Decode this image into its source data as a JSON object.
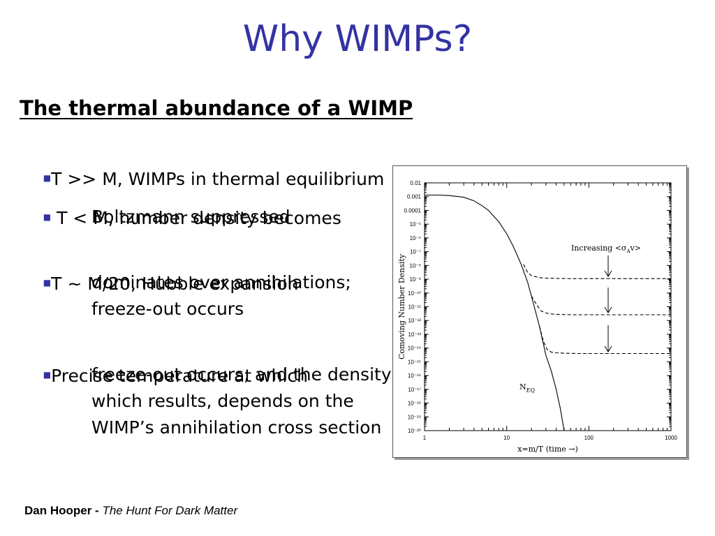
{
  "slide": {
    "title": "Why WIMPs?",
    "subtitle": "The thermal abundance of a WIMP",
    "bullets": [
      {
        "lines": [
          "T >> M, WIMPs in thermal equilibrium"
        ]
      },
      {
        "lines": [
          " T < M, number density becomes",
          "Boltzmann suppressed"
        ]
      },
      {
        "lines": [
          "T ~ M/20, Hubble expansion",
          "dominates over annihilations;",
          "freeze-out occurs"
        ]
      },
      {
        "lines": [
          "Precise temperature at which",
          "freeze-out occurs, and the density",
          "which results, depends on the",
          "WIMP’s annihilation cross section"
        ]
      }
    ]
  },
  "footer": {
    "author": "Dan Hooper - ",
    "talk": "The Hunt For Dark Matter"
  },
  "colors": {
    "title": "#3333a3",
    "bullet": "#3333a3"
  },
  "chart_data": {
    "type": "line",
    "xlabel": "x=m/T (time →)",
    "ylabel": "Comoving Number Density",
    "xscale": "log",
    "yscale": "log",
    "xlim": [
      1,
      1000
    ],
    "ylim": [
      1e-20,
      0.01
    ],
    "x_ticks": [
      "1",
      "10",
      "100",
      "1000"
    ],
    "y_ticks": [
      "0.01",
      "0.001",
      "0.0001",
      "10⁻⁵",
      "10⁻⁶",
      "10⁻⁷",
      "10⁻⁸",
      "10⁻⁹",
      "10⁻¹⁰",
      "10⁻¹¹",
      "10⁻¹²",
      "10⁻¹³",
      "10⁻¹⁴",
      "10⁻¹⁵",
      "10⁻¹⁶",
      "10⁻¹⁷",
      "10⁻¹⁸",
      "10⁻¹⁹",
      "10⁻²⁰"
    ],
    "annotations": {
      "increasing_prefix": "Increasing <σ",
      "increasing_sub": "A",
      "increasing_suffix": "v>",
      "neq_main": "N",
      "neq_sub": "EQ"
    },
    "series": [
      {
        "name": "N_EQ",
        "style": "solid",
        "x": [
          1,
          1.5,
          2,
          3,
          4,
          5,
          6,
          8,
          10,
          12,
          15,
          18,
          20,
          25,
          30,
          35,
          40,
          45,
          50
        ],
        "y": [
          0.0013,
          0.0013,
          0.0012,
          0.0009,
          0.0005,
          0.00022,
          0.0001,
          1.5e-05,
          2e-06,
          2.5e-07,
          1.2e-08,
          6e-10,
          6e-11,
          4e-13,
          3e-15,
          2e-16,
          1e-17,
          4e-19,
          1e-20
        ]
      },
      {
        "style": "dashed",
        "x": [
          16,
          18,
          20,
          25,
          30,
          40,
          50,
          70,
          100,
          200,
          500,
          1000
        ],
        "y": [
          1.2e-08,
          3e-09,
          1.8e-09,
          1.3e-09,
          1.2e-09,
          1.15e-09,
          1.12e-09,
          1.1e-09,
          1.1e-09,
          1.1e-09,
          1.1e-09,
          1.1e-09
        ]
      },
      {
        "style": "dashed",
        "x": [
          20,
          23,
          26,
          30,
          35,
          40,
          50,
          70,
          100,
          200,
          500,
          1000
        ],
        "y": [
          6e-11,
          1.5e-11,
          5e-12,
          3.5e-12,
          3e-12,
          2.8e-12,
          2.7e-12,
          2.6e-12,
          2.6e-12,
          2.6e-12,
          2.6e-12,
          2.6e-12
        ]
      },
      {
        "style": "dashed",
        "x": [
          25,
          28,
          31,
          35,
          40,
          50,
          70,
          100,
          200,
          500,
          1000
        ],
        "y": [
          4e-13,
          3e-14,
          8e-15,
          5e-15,
          4.5e-15,
          4.2e-15,
          4e-15,
          4e-15,
          4e-15,
          4e-15,
          4e-15
        ]
      }
    ]
  }
}
